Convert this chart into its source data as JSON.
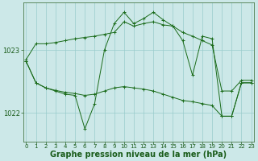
{
  "bg_color": "#cce8e8",
  "grid_color": "#99cccc",
  "line_color": "#1a6b1a",
  "marker_color": "#1a6b1a",
  "xlabel": "Graphe pression niveau de la mer (hPa)",
  "xlabel_color": "#1a5c1a",
  "tick_label_color": "#1a5c1a",
  "ytick_labels": [
    1022,
    1023
  ],
  "ylim": [
    1021.55,
    1023.75
  ],
  "xlim": [
    -0.3,
    23.3
  ],
  "series": [
    [
      1022.85,
      1023.1,
      1023.1,
      1023.12,
      1023.15,
      1023.18,
      1023.2,
      1023.22,
      1023.25,
      1023.28,
      1023.45,
      1023.38,
      1023.42,
      1023.45,
      1023.4,
      1023.38,
      1023.28,
      1023.22,
      1023.15,
      1023.08,
      1022.35,
      1022.35,
      1022.52,
      1022.52
    ],
    [
      1022.82,
      1022.48,
      1022.4,
      1022.36,
      1022.33,
      1022.31,
      1022.28,
      1022.3,
      1022.35,
      1022.4,
      1022.42,
      1022.4,
      1022.38,
      1022.35,
      1022.3,
      1022.25,
      1022.2,
      1022.18,
      1022.15,
      1022.12,
      1021.95,
      1021.95,
      1022.48,
      1022.48
    ],
    [
      1022.82,
      1022.48,
      1022.4,
      1022.35,
      1022.3,
      1022.28,
      1021.75,
      1022.15,
      1023.0,
      1023.42,
      1023.6,
      1023.42,
      1023.5,
      1023.6,
      1023.48,
      1023.38,
      1023.15,
      1022.6,
      1023.22,
      1023.18,
      1021.95,
      1021.95,
      1022.48,
      1022.48
    ]
  ],
  "xtick_fontsize": 5.0,
  "ytick_fontsize": 6.0,
  "xlabel_fontsize": 7.0,
  "linewidth": 0.7,
  "markersize": 2.5
}
